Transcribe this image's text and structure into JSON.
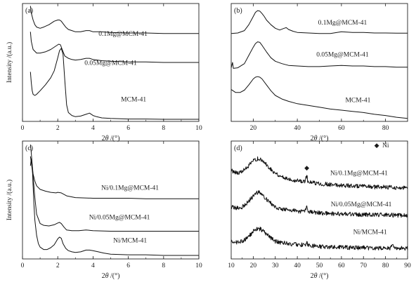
{
  "chart_data": [
    {
      "type": "line",
      "panel_label": "(a)",
      "xlabel_prefix": "2",
      "xlabel_theta": "θ",
      "xlabel_suffix": " /(°)",
      "ylabel": "Intensity /(a.u.)",
      "xlim": [
        0,
        10
      ],
      "x_ticks": [
        0,
        2,
        4,
        6,
        8,
        10
      ],
      "legend_markers": [],
      "series": [
        {
          "name": "0.1Mg@MCM-41",
          "label_at": [
            5.7,
            0.725
          ],
          "x": [
            0.45,
            0.5,
            0.6,
            0.7,
            0.8,
            1.0,
            1.2,
            1.5,
            1.8,
            2.0,
            2.1,
            2.2,
            2.3,
            2.45,
            2.6,
            2.8,
            3.0,
            3.3,
            3.6,
            3.8,
            4.0,
            4.4,
            5.0,
            6.0,
            7.0,
            8.0,
            9.0,
            10.0
          ],
          "values": [
            0.98,
            0.92,
            0.86,
            0.82,
            0.8,
            0.79,
            0.8,
            0.82,
            0.85,
            0.86,
            0.86,
            0.85,
            0.83,
            0.8,
            0.78,
            0.77,
            0.76,
            0.76,
            0.77,
            0.77,
            0.76,
            0.76,
            0.755,
            0.75,
            0.75,
            0.745,
            0.745,
            0.745
          ]
        },
        {
          "name": "0.05Mg@MCM-41",
          "label_at": [
            5.0,
            0.48
          ],
          "x": [
            0.45,
            0.5,
            0.6,
            0.8,
            1.0,
            1.3,
            1.6,
            1.9,
            2.05,
            2.15,
            2.25,
            2.4,
            2.6,
            2.8,
            3.0,
            3.3,
            3.6,
            3.8,
            4.0,
            4.5,
            5.0,
            6.0,
            7.0,
            8.0,
            9.0,
            10.0
          ],
          "values": [
            0.76,
            0.68,
            0.61,
            0.58,
            0.58,
            0.59,
            0.61,
            0.64,
            0.655,
            0.65,
            0.61,
            0.555,
            0.535,
            0.525,
            0.52,
            0.525,
            0.535,
            0.535,
            0.525,
            0.515,
            0.51,
            0.505,
            0.505,
            0.5,
            0.5,
            0.5
          ]
        },
        {
          "name": "MCM-41",
          "label_at": [
            6.3,
            0.17
          ],
          "x": [
            0.45,
            0.5,
            0.55,
            0.6,
            0.7,
            0.8,
            1.0,
            1.3,
            1.6,
            1.8,
            2.0,
            2.1,
            2.2,
            2.3,
            2.4,
            2.5,
            2.6,
            2.8,
            3.0,
            3.3,
            3.6,
            3.8,
            4.0,
            4.2,
            4.5,
            5.0,
            6.0,
            7.0,
            8.0,
            9.0,
            10.0
          ],
          "values": [
            0.42,
            0.33,
            0.26,
            0.23,
            0.22,
            0.23,
            0.26,
            0.31,
            0.37,
            0.43,
            0.54,
            0.6,
            0.62,
            0.57,
            0.35,
            0.14,
            0.075,
            0.05,
            0.04,
            0.045,
            0.06,
            0.07,
            0.05,
            0.04,
            0.03,
            0.025,
            0.02,
            0.02,
            0.018,
            0.018,
            0.018
          ]
        }
      ]
    },
    {
      "type": "line",
      "panel_label": "(b)",
      "xlabel_prefix": "2",
      "xlabel_theta": "θ",
      "xlabel_suffix": " /(°)",
      "ylabel": "",
      "xlim": [
        10,
        90
      ],
      "x_ticks": [
        20,
        40,
        60,
        80
      ],
      "legend_markers": [],
      "series": [
        {
          "name": "0.1Mg@MCM-41",
          "label_at": [
            60.5,
            0.82
          ],
          "x": [
            10,
            13,
            16,
            18,
            20,
            21,
            22,
            23,
            24,
            25,
            26,
            28,
            30,
            32,
            34,
            35,
            36,
            38,
            40,
            45,
            50,
            55,
            60,
            65,
            70,
            75,
            80,
            85,
            90
          ],
          "values": [
            0.745,
            0.75,
            0.77,
            0.82,
            0.89,
            0.925,
            0.94,
            0.935,
            0.915,
            0.89,
            0.86,
            0.82,
            0.79,
            0.775,
            0.79,
            0.795,
            0.78,
            0.765,
            0.755,
            0.75,
            0.745,
            0.745,
            0.76,
            0.755,
            0.755,
            0.75,
            0.75,
            0.748,
            0.748
          ]
        },
        {
          "name": "0.05Mg@MCM-41",
          "label_at": [
            60.5,
            0.55
          ],
          "x": [
            10,
            10.6,
            11,
            13,
            16,
            18,
            20,
            21,
            22,
            23,
            24,
            26,
            28,
            30,
            33,
            36,
            40,
            45,
            50,
            55,
            60,
            65,
            70,
            75,
            80,
            85,
            90
          ],
          "values": [
            0.455,
            0.5,
            0.45,
            0.455,
            0.49,
            0.56,
            0.63,
            0.66,
            0.675,
            0.67,
            0.645,
            0.59,
            0.54,
            0.51,
            0.49,
            0.475,
            0.47,
            0.465,
            0.465,
            0.47,
            0.475,
            0.47,
            0.47,
            0.465,
            0.465,
            0.46,
            0.46
          ]
        },
        {
          "name": "MCM-41",
          "label_at": [
            67.5,
            0.165
          ],
          "x": [
            10,
            12,
            14,
            16,
            18,
            20,
            21,
            22,
            23,
            24,
            26,
            28,
            30,
            33,
            36,
            40,
            45,
            50,
            55,
            60,
            65,
            70,
            75,
            80,
            85,
            90
          ],
          "values": [
            0.27,
            0.245,
            0.245,
            0.265,
            0.31,
            0.36,
            0.375,
            0.38,
            0.375,
            0.36,
            0.31,
            0.26,
            0.22,
            0.19,
            0.17,
            0.15,
            0.135,
            0.12,
            0.105,
            0.095,
            0.085,
            0.075,
            0.06,
            0.05,
            0.035,
            0.025
          ]
        }
      ]
    },
    {
      "type": "line",
      "panel_label": "(c)",
      "xlabel_prefix": "2",
      "xlabel_theta": "θ",
      "xlabel_suffix": " /(°)",
      "ylabel": "Intensity /(a.u.)",
      "xlim": [
        0,
        10
      ],
      "x_ticks": [
        0,
        2,
        4,
        6,
        8,
        10
      ],
      "legend_markers": [],
      "series": [
        {
          "name": "Ni/0.1Mg@MCM-41",
          "label_at": [
            6.1,
            0.585
          ],
          "x": [
            0.45,
            0.5,
            0.55,
            0.6,
            0.7,
            0.8,
            1.0,
            1.3,
            1.6,
            1.9,
            2.0,
            2.2,
            2.5,
            3.0,
            4.0,
            5.0,
            6.0,
            7.0,
            8.0,
            9.0,
            10.0
          ],
          "values": [
            0.97,
            0.9,
            0.8,
            0.72,
            0.66,
            0.62,
            0.59,
            0.575,
            0.565,
            0.56,
            0.565,
            0.56,
            0.535,
            0.52,
            0.515,
            0.515,
            0.515,
            0.51,
            0.51,
            0.51,
            0.51
          ]
        },
        {
          "name": "Ni/0.05Mg@MCM-41",
          "label_at": [
            5.5,
            0.335
          ],
          "x": [
            0.45,
            0.5,
            0.6,
            0.7,
            0.8,
            1.0,
            1.2,
            1.5,
            1.8,
            2.0,
            2.1,
            2.2,
            2.35,
            2.5,
            2.8,
            3.2,
            3.6,
            4.0,
            5.0,
            6.0,
            7.0,
            8.0,
            9.0,
            10.0
          ],
          "values": [
            0.87,
            0.82,
            0.7,
            0.52,
            0.38,
            0.3,
            0.285,
            0.28,
            0.29,
            0.305,
            0.31,
            0.3,
            0.27,
            0.245,
            0.24,
            0.24,
            0.245,
            0.24,
            0.235,
            0.235,
            0.235,
            0.235,
            0.235,
            0.235
          ]
        },
        {
          "name": "Ni/MCM-41",
          "label_at": [
            6.1,
            0.14
          ],
          "x": [
            0.45,
            0.5,
            0.55,
            0.6,
            0.65,
            0.7,
            0.8,
            0.9,
            1.0,
            1.2,
            1.4,
            1.6,
            1.8,
            2.0,
            2.1,
            2.2,
            2.3,
            2.45,
            2.6,
            2.8,
            3.0,
            3.3,
            3.6,
            3.8,
            4.0,
            4.3,
            4.6,
            5.0,
            6.0,
            7.0,
            8.0,
            9.0,
            10.0
          ],
          "values": [
            0.79,
            0.85,
            0.8,
            0.62,
            0.46,
            0.33,
            0.2,
            0.13,
            0.1,
            0.08,
            0.08,
            0.095,
            0.12,
            0.17,
            0.185,
            0.175,
            0.13,
            0.09,
            0.07,
            0.06,
            0.055,
            0.06,
            0.075,
            0.075,
            0.07,
            0.06,
            0.05,
            0.04,
            0.035,
            0.035,
            0.03,
            0.03,
            0.03
          ]
        }
      ]
    },
    {
      "type": "line",
      "panel_label": "(d)",
      "xlabel_prefix": "2",
      "xlabel_theta": "θ",
      "xlabel_suffix": " /(°)",
      "ylabel": "",
      "xlim": [
        10,
        90
      ],
      "x_ticks": [
        10,
        20,
        30,
        40,
        50,
        60,
        70,
        80,
        90
      ],
      "legend_markers": [
        {
          "symbol": "◆",
          "label": "Ni",
          "at": [
            76,
            0.945
          ]
        },
        {
          "symbol": "◆",
          "label": "",
          "at": [
            44.3,
            0.755
          ]
        }
      ],
      "series": [
        {
          "name": "Ni/0.1Mg@MCM-41",
          "label_at": [
            68,
            0.71
          ],
          "noise": 0.018,
          "x": [
            10,
            13,
            15,
            17,
            19,
            20,
            21,
            22,
            23,
            24,
            25,
            26,
            27,
            28,
            30,
            32,
            34,
            36,
            38,
            40,
            42,
            43.6,
            44.3,
            44.7,
            45.5,
            47,
            50,
            55,
            60,
            65,
            70,
            75,
            80,
            85,
            90
          ],
          "values": [
            0.75,
            0.73,
            0.74,
            0.77,
            0.81,
            0.83,
            0.845,
            0.85,
            0.845,
            0.83,
            0.82,
            0.8,
            0.78,
            0.76,
            0.73,
            0.705,
            0.69,
            0.68,
            0.67,
            0.665,
            0.66,
            0.66,
            0.715,
            0.66,
            0.65,
            0.645,
            0.64,
            0.63,
            0.625,
            0.62,
            0.615,
            0.61,
            0.61,
            0.605,
            0.6
          ]
        },
        {
          "name": "Ni/0.05Mg@MCM-41",
          "label_at": [
            69,
            0.445
          ],
          "noise": 0.018,
          "x": [
            10,
            13,
            15,
            17,
            19,
            20,
            21,
            22,
            23,
            24,
            25,
            26,
            28,
            30,
            32,
            34,
            36,
            38,
            40,
            42,
            43.6,
            44.3,
            44.7,
            45.5,
            47,
            50,
            55,
            60,
            65,
            70,
            75,
            80,
            85,
            90
          ],
          "values": [
            0.44,
            0.43,
            0.44,
            0.47,
            0.51,
            0.535,
            0.555,
            0.565,
            0.56,
            0.545,
            0.53,
            0.51,
            0.47,
            0.445,
            0.43,
            0.42,
            0.415,
            0.41,
            0.405,
            0.405,
            0.405,
            0.455,
            0.41,
            0.4,
            0.395,
            0.39,
            0.385,
            0.38,
            0.38,
            0.375,
            0.375,
            0.375,
            0.37,
            0.37
          ]
        },
        {
          "name": "Ni/MCM-41",
          "label_at": [
            73,
            0.21
          ],
          "noise": 0.018,
          "x": [
            10,
            13,
            15,
            17,
            19,
            20,
            21,
            22,
            23,
            24,
            25,
            26,
            28,
            30,
            32,
            34,
            36,
            38,
            40,
            42,
            43.6,
            44.3,
            44.7,
            45.5,
            47,
            50,
            55,
            60,
            65,
            70,
            75,
            80,
            82,
            83,
            84,
            85,
            90
          ],
          "values": [
            0.15,
            0.14,
            0.15,
            0.175,
            0.21,
            0.235,
            0.25,
            0.26,
            0.255,
            0.245,
            0.23,
            0.21,
            0.175,
            0.15,
            0.14,
            0.135,
            0.13,
            0.125,
            0.12,
            0.12,
            0.12,
            0.15,
            0.12,
            0.115,
            0.11,
            0.105,
            0.1,
            0.1,
            0.095,
            0.095,
            0.09,
            0.09,
            0.09,
            0.12,
            0.09,
            0.09,
            0.09
          ]
        }
      ]
    }
  ]
}
